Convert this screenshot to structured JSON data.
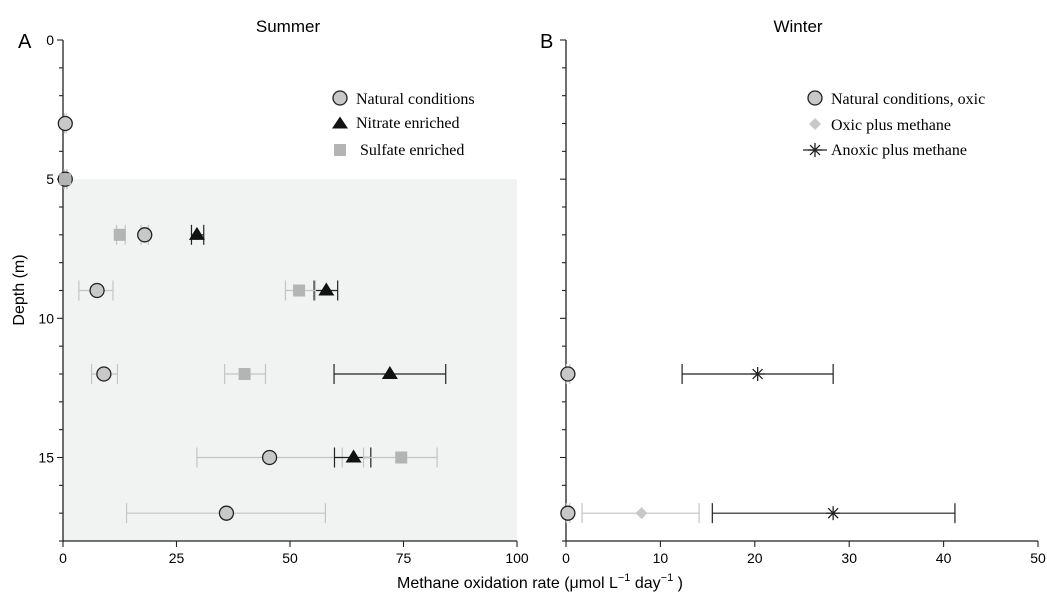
{
  "xlabel_text": "Methane oxidation rate (μmol L",
  "xlabel_sup1": "−1",
  "xlabel_mid": " day",
  "xlabel_sup2": "−1",
  "xlabel_end": " )",
  "ylabel": "Depth (m)",
  "colors": {
    "shade": "#f0f3f2",
    "circle_fill": "#c8c8c8",
    "triangle": "#111111",
    "square": "#b4b4b4",
    "diamond": "#c8c8c8",
    "err_black": "#222222",
    "err_gray": "#c4c4c4"
  },
  "chart_data": [
    {
      "panel": "A",
      "title": "Summer",
      "type": "scatter",
      "xlim": [
        0,
        100
      ],
      "xticks": [
        0,
        25,
        50,
        75,
        100
      ],
      "ylim": [
        0,
        18
      ],
      "yticks": [
        0,
        5,
        10,
        15
      ],
      "shaded_depth_from": 5,
      "legend_position": "top-right",
      "series": [
        {
          "name": "Natural conditions",
          "marker": "circle",
          "points": [
            {
              "x": 0.5,
              "y": 3,
              "err": [
                0.3,
                0.7
              ]
            },
            {
              "x": 0.5,
              "y": 5,
              "err": [
                0.2,
                0.8
              ]
            },
            {
              "x": 18,
              "y": 7,
              "err": [
                17.2,
                18.8
              ]
            },
            {
              "x": 7.5,
              "y": 9,
              "err": [
                3.5,
                11
              ]
            },
            {
              "x": 9,
              "y": 12,
              "err": [
                6.3,
                12
              ]
            },
            {
              "x": 45.5,
              "y": 15,
              "err": [
                29.5,
                61.5
              ]
            },
            {
              "x": 36,
              "y": 17,
              "err": [
                14,
                57.8
              ]
            }
          ]
        },
        {
          "name": "Nitrate enriched",
          "marker": "triangle",
          "points": [
            {
              "x": 29.5,
              "y": 7,
              "err": [
                28.3,
                31
              ]
            },
            {
              "x": 58,
              "y": 9,
              "err": [
                55.3,
                60.5
              ]
            },
            {
              "x": 72,
              "y": 12,
              "err": [
                59.7,
                84.3
              ]
            },
            {
              "x": 64,
              "y": 15,
              "err": [
                59.8,
                67.8
              ]
            }
          ]
        },
        {
          "name": "Sulfate enriched",
          "marker": "square",
          "points": [
            {
              "x": 0.5,
              "y": 5,
              "err": [
                0.3,
                0.9
              ]
            },
            {
              "x": 12.5,
              "y": 7,
              "err": [
                11.8,
                13.7
              ]
            },
            {
              "x": 52,
              "y": 9,
              "err": [
                49,
                55.6
              ]
            },
            {
              "x": 40,
              "y": 12,
              "err": [
                35.6,
                44.6
              ]
            },
            {
              "x": 74.5,
              "y": 15,
              "err": [
                66.2,
                82.4
              ]
            }
          ]
        }
      ]
    },
    {
      "panel": "B",
      "title": "Winter",
      "type": "scatter",
      "xlim": [
        0,
        50
      ],
      "xticks": [
        0,
        10,
        20,
        30,
        40,
        50
      ],
      "ylim": [
        0,
        18
      ],
      "legend_position": "top-right",
      "series": [
        {
          "name": "Natural conditions, oxic",
          "marker": "circle",
          "points": [
            {
              "x": 0.2,
              "y": 12,
              "err": [
                0.05,
                0.4
              ]
            },
            {
              "x": 0.2,
              "y": 17,
              "err": [
                0.05,
                0.4
              ]
            }
          ]
        },
        {
          "name": "Oxic plus methane",
          "marker": "diamond",
          "points": [
            {
              "x": 8,
              "y": 17,
              "err": [
                1.7,
                14.1
              ]
            }
          ]
        },
        {
          "name": "Anoxic plus methane",
          "marker": "star",
          "points": [
            {
              "x": 20.3,
              "y": 12,
              "err": [
                12.3,
                28.3
              ]
            },
            {
              "x": 28.3,
              "y": 17,
              "err": [
                15.5,
                41.2
              ]
            }
          ]
        }
      ]
    }
  ]
}
